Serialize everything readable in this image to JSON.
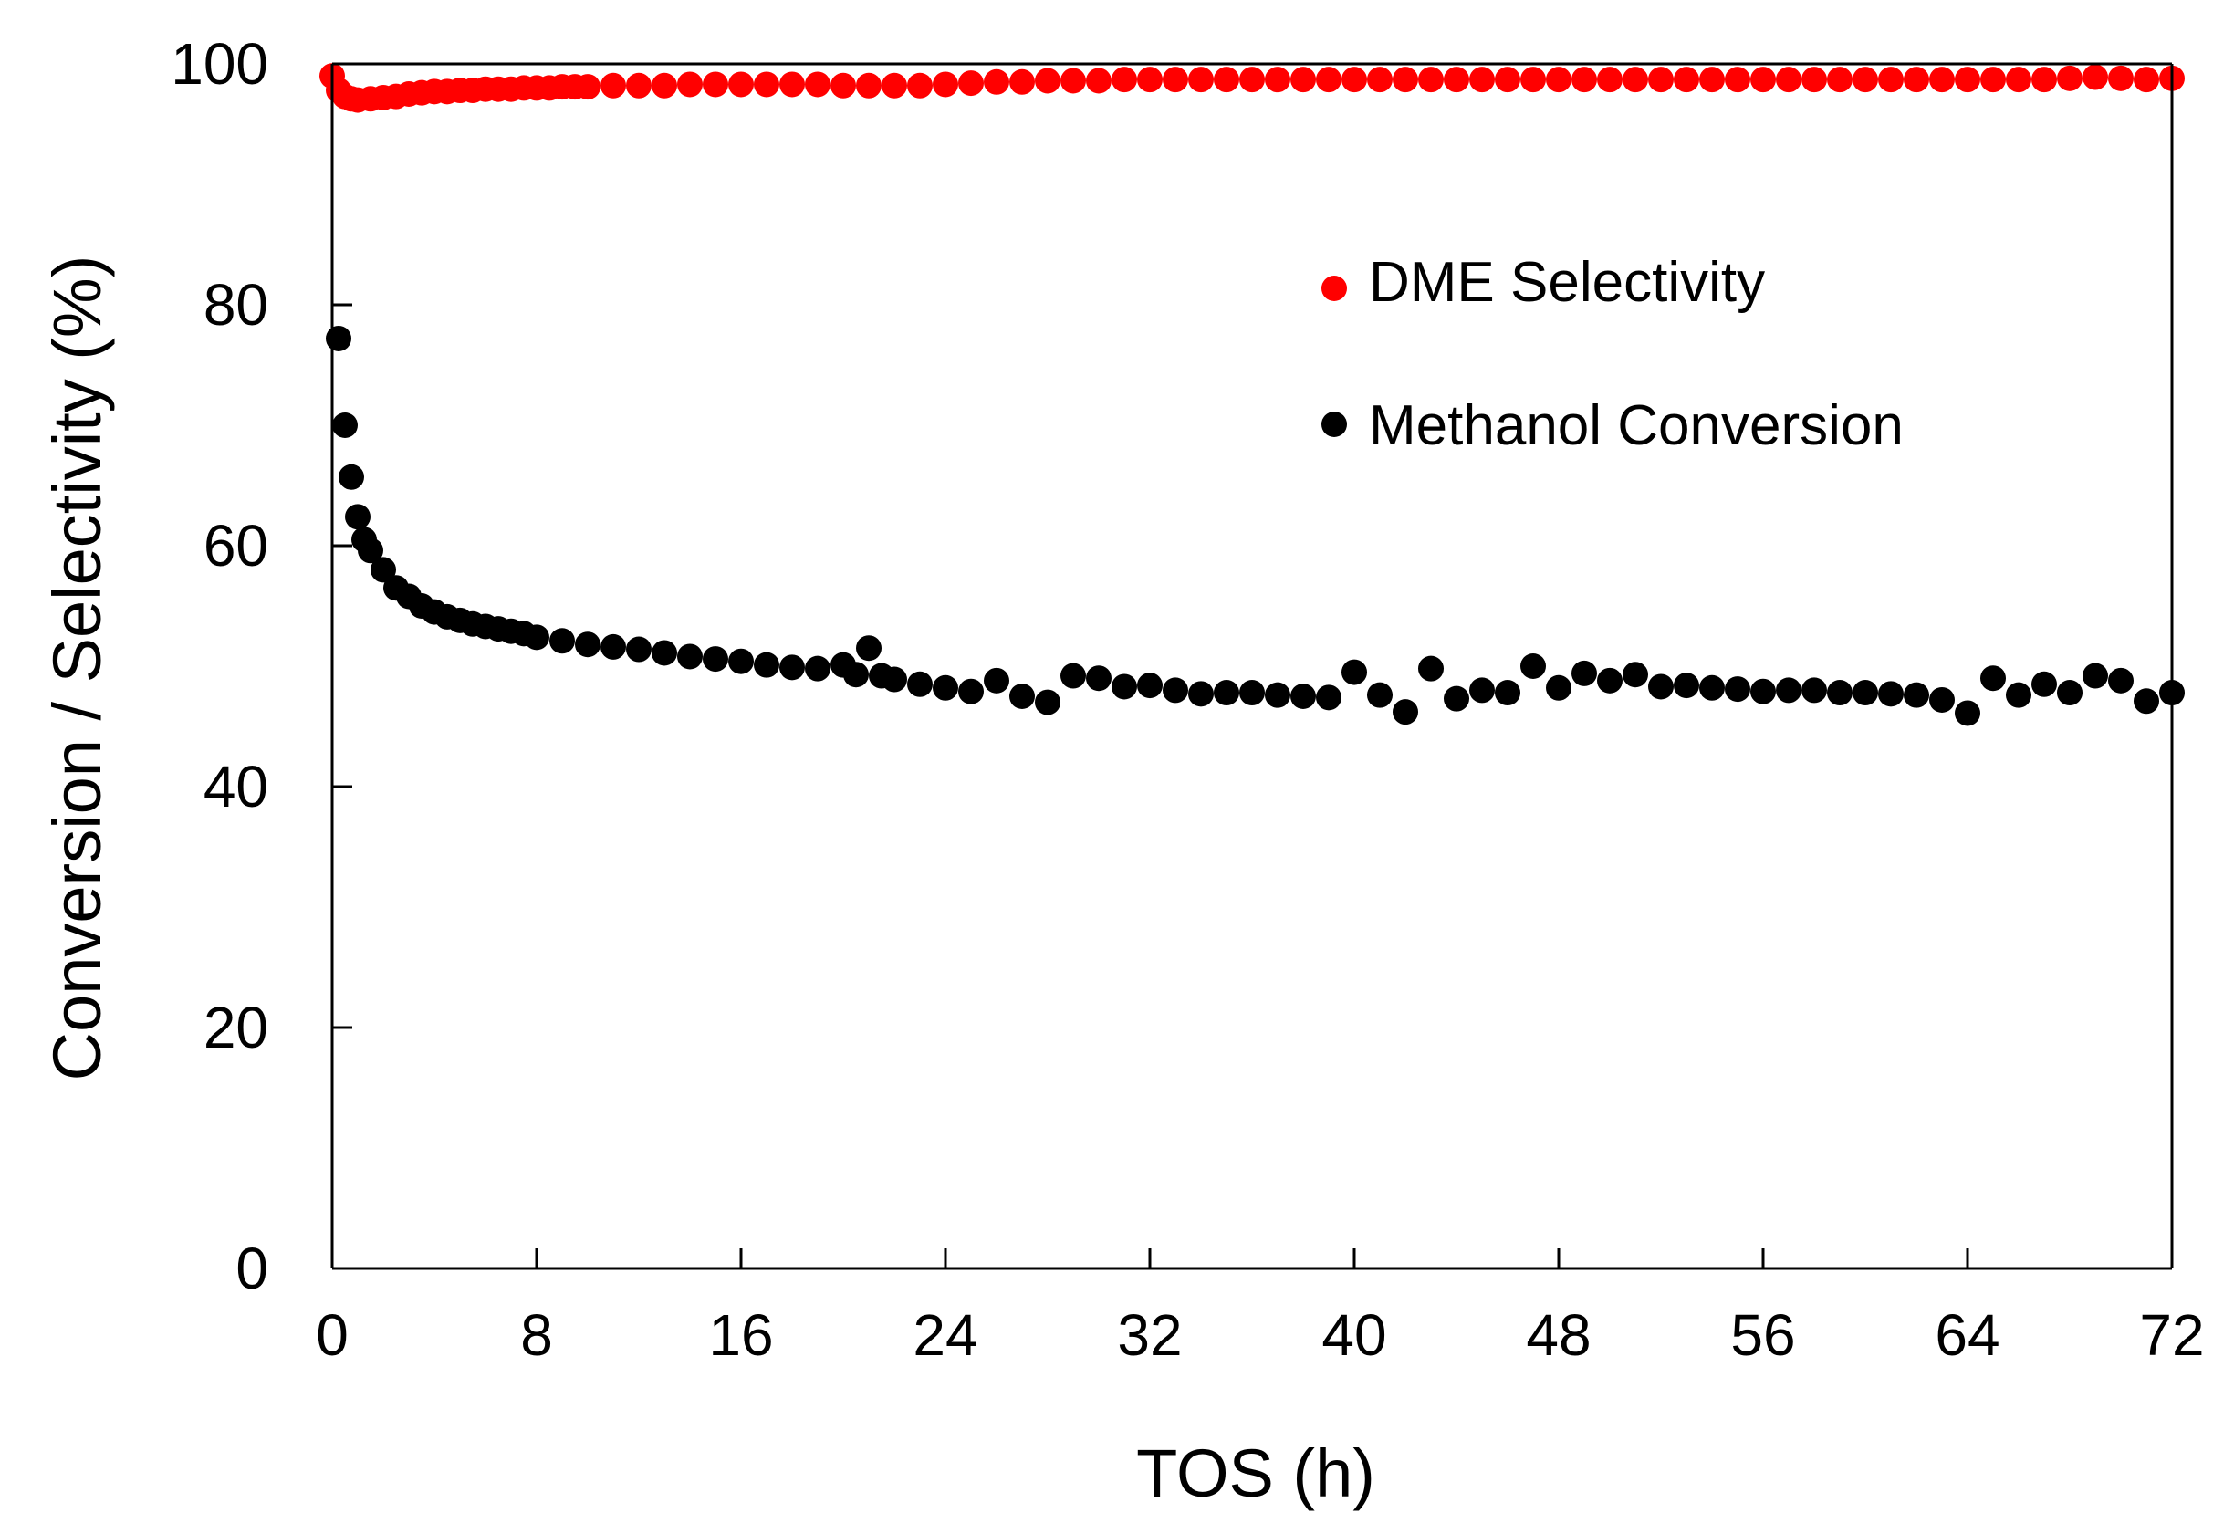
{
  "chart_data": {
    "type": "scatter",
    "title": "",
    "xlabel": "TOS (h)",
    "ylabel": "Conversion / Selectivity (%)",
    "xlim": [
      0,
      72
    ],
    "ylim": [
      0,
      100
    ],
    "xticks": [
      0,
      8,
      16,
      24,
      32,
      40,
      48,
      56,
      64,
      72
    ],
    "yticks": [
      0,
      20,
      40,
      60,
      80,
      100
    ],
    "grid": false,
    "legend_position": "upper-right",
    "series": [
      {
        "name": "DME Selectivity",
        "color": "#ff0000",
        "x": [
          0,
          0.25,
          0.5,
          0.75,
          1,
          1.5,
          2,
          2.5,
          3,
          3.5,
          4,
          4.5,
          5,
          5.5,
          6,
          6.5,
          7,
          7.5,
          8,
          8.5,
          9,
          9.5,
          10,
          11,
          12,
          13,
          14,
          15,
          16,
          17,
          18,
          19,
          20,
          21,
          22,
          23,
          24,
          25,
          26,
          27,
          28,
          29,
          30,
          31,
          32,
          33,
          34,
          35,
          36,
          37,
          38,
          39,
          40,
          41,
          42,
          43,
          44,
          45,
          46,
          47,
          48,
          49,
          50,
          51,
          52,
          53,
          54,
          55,
          56,
          57,
          58,
          59,
          60,
          61,
          62,
          63,
          64,
          65,
          66,
          67,
          68,
          69,
          70,
          71,
          72
        ],
        "y": [
          99.0,
          97.8,
          97.3,
          97.1,
          97.0,
          97.1,
          97.2,
          97.3,
          97.5,
          97.6,
          97.7,
          97.7,
          97.8,
          97.8,
          97.9,
          97.9,
          97.9,
          98.0,
          98.0,
          98.0,
          98.1,
          98.1,
          98.1,
          98.2,
          98.2,
          98.2,
          98.3,
          98.3,
          98.3,
          98.3,
          98.3,
          98.3,
          98.2,
          98.2,
          98.2,
          98.2,
          98.3,
          98.4,
          98.5,
          98.5,
          98.6,
          98.6,
          98.6,
          98.7,
          98.7,
          98.7,
          98.7,
          98.7,
          98.7,
          98.7,
          98.7,
          98.7,
          98.7,
          98.7,
          98.7,
          98.7,
          98.7,
          98.7,
          98.7,
          98.7,
          98.7,
          98.7,
          98.7,
          98.7,
          98.7,
          98.7,
          98.7,
          98.7,
          98.7,
          98.7,
          98.7,
          98.7,
          98.7,
          98.7,
          98.7,
          98.7,
          98.7,
          98.7,
          98.7,
          98.7,
          98.8,
          98.9,
          98.8,
          98.7,
          98.8
        ]
      },
      {
        "name": "Methanol Conversion",
        "color": "#000000",
        "x": [
          0.25,
          0.5,
          0.75,
          1,
          1.25,
          1.5,
          2,
          2.5,
          3,
          3.5,
          4,
          4.5,
          5,
          5.5,
          6,
          6.5,
          7,
          7.5,
          8,
          9,
          10,
          11,
          12,
          13,
          14,
          15,
          16,
          17,
          18,
          19,
          20,
          20.5,
          21,
          21.5,
          22,
          23,
          24,
          25,
          26,
          27,
          28,
          29,
          30,
          31,
          32,
          33,
          34,
          35,
          36,
          37,
          38,
          39,
          40,
          41,
          42,
          43,
          44,
          45,
          46,
          47,
          48,
          49,
          50,
          51,
          52,
          53,
          54,
          55,
          56,
          57,
          58,
          59,
          60,
          61,
          62,
          63,
          64,
          65,
          66,
          67,
          68,
          69,
          70,
          71,
          72
        ],
        "y": [
          77.2,
          70.0,
          65.7,
          62.4,
          60.5,
          59.6,
          58.0,
          56.5,
          55.8,
          55.0,
          54.5,
          54.1,
          53.8,
          53.5,
          53.3,
          53.1,
          52.9,
          52.7,
          52.4,
          52.1,
          51.8,
          51.6,
          51.4,
          51.1,
          50.8,
          50.6,
          50.4,
          50.1,
          49.9,
          49.8,
          50.1,
          49.3,
          51.5,
          49.2,
          48.9,
          48.5,
          48.2,
          47.9,
          48.8,
          47.5,
          47.0,
          49.2,
          49.0,
          48.3,
          48.4,
          48.0,
          47.7,
          47.8,
          47.8,
          47.6,
          47.5,
          47.4,
          49.5,
          47.6,
          46.2,
          49.8,
          47.3,
          48.0,
          47.8,
          50.0,
          48.2,
          49.4,
          48.8,
          49.3,
          48.3,
          48.4,
          48.2,
          48.1,
          47.9,
          48.0,
          48.0,
          47.8,
          47.8,
          47.7,
          47.6,
          47.2,
          46.1,
          49.0,
          47.6,
          48.5,
          47.8,
          49.2,
          48.8,
          47.1,
          47.8
        ]
      }
    ]
  }
}
